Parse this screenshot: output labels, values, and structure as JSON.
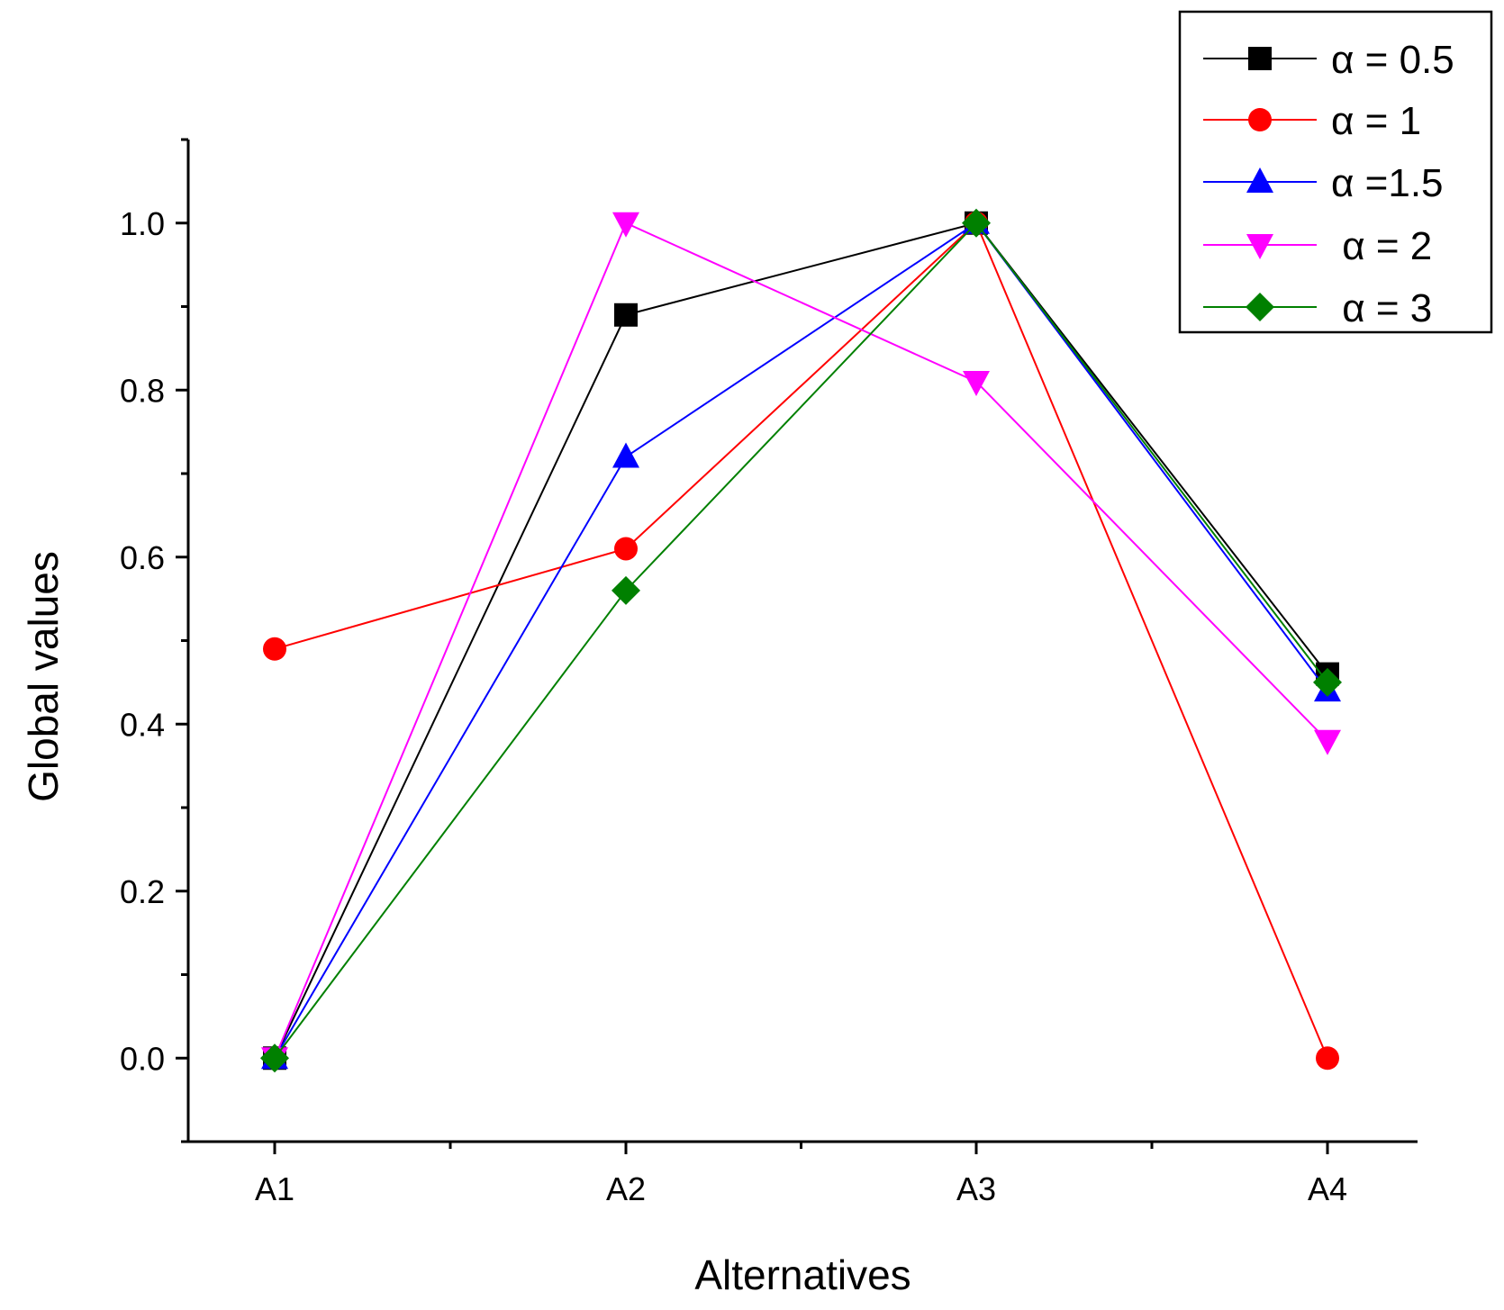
{
  "chart_data": {
    "type": "line",
    "title": "",
    "xlabel": "Alternatives",
    "ylabel": "Global values",
    "categories": [
      "A1",
      "A2",
      "A3",
      "A4"
    ],
    "ylim": [
      -0.1,
      1.1
    ],
    "y_ticks": [
      "0.0",
      "0.2",
      "0.4",
      "0.6",
      "0.8",
      "1.0"
    ],
    "legend_position": "top-right",
    "grid": false,
    "series": [
      {
        "name": "α = 0.5",
        "color": "#000000",
        "marker": "square",
        "values": [
          0,
          0.89,
          1.0,
          0.46
        ]
      },
      {
        "name": "α = 1",
        "color": "#ff0000",
        "marker": "circle",
        "values": [
          0.49,
          0.61,
          1.0,
          0
        ]
      },
      {
        "name": "α =1.5",
        "color": "#0000ff",
        "marker": "triangle-up",
        "values": [
          0,
          0.72,
          1.0,
          0.44
        ]
      },
      {
        "name": " α = 2",
        "color": "#ff00ff",
        "marker": "triangle-down",
        "values": [
          0,
          1.0,
          0.81,
          0.38
        ]
      },
      {
        "name": " α = 3",
        "color": "#008000",
        "marker": "diamond",
        "values": [
          0,
          0.56,
          1.0,
          0.45
        ]
      }
    ]
  }
}
